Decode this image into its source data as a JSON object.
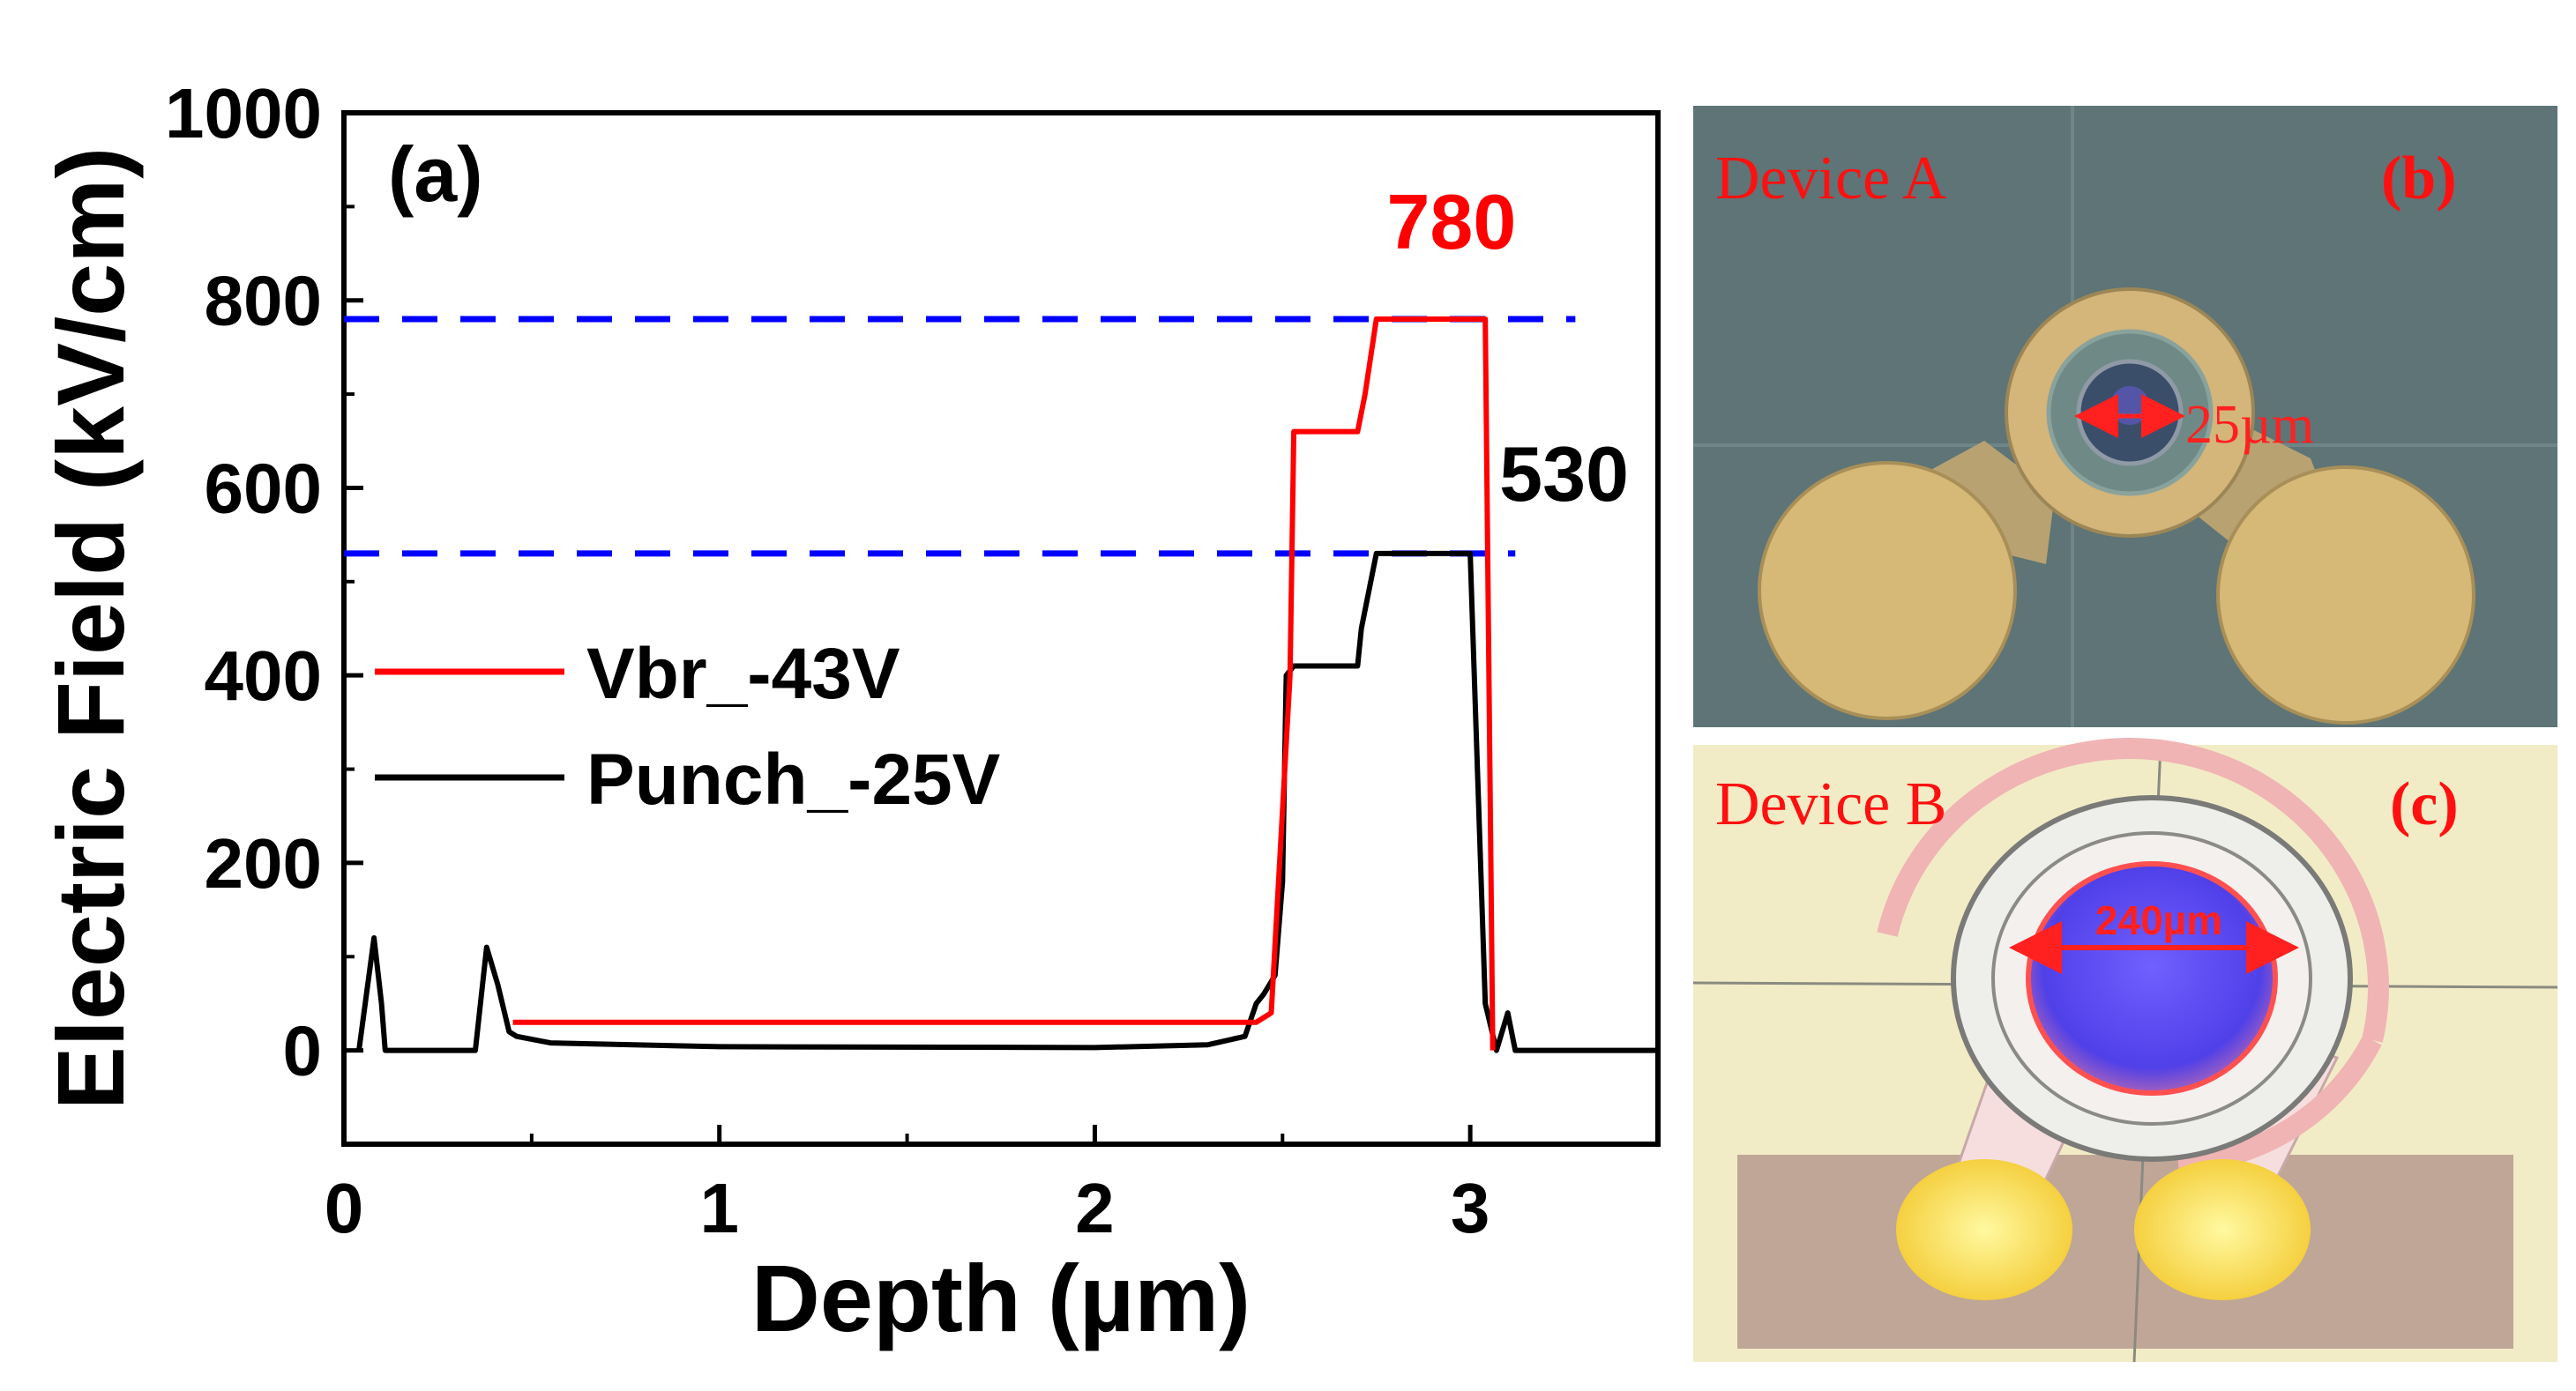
{
  "colors": {
    "vbr": "#ff0000",
    "punch": "#000000",
    "ref_lines": "#0000ff",
    "annotation_red": "#ff0000",
    "annotation_black": "#000000"
  },
  "chart_data": {
    "type": "line",
    "panel_label": "(a)",
    "xlabel": "Depth (µm)",
    "ylabel": "Electric Field (kV/cm)",
    "xlim": [
      0,
      3.5
    ],
    "ylim": [
      -100,
      1000
    ],
    "xticks": [
      0,
      1,
      2,
      3
    ],
    "xtick_labels": [
      "0",
      "1",
      "2",
      "3"
    ],
    "yticks": [
      0,
      200,
      400,
      600,
      800,
      1000
    ],
    "ytick_labels": [
      "0",
      "200",
      "400",
      "600",
      "800",
      "1000"
    ],
    "grid": false,
    "legend_position": "middle-left",
    "series": [
      {
        "name": "Vbr_-43V",
        "color": "#ff0000",
        "x": [
          0.45,
          2.43,
          2.47,
          2.52,
          2.53,
          2.7,
          2.72,
          2.75,
          3.04,
          3.06
        ],
        "y": [
          30,
          30,
          40,
          400,
          660,
          660,
          700,
          780,
          780,
          0
        ]
      },
      {
        "name": "Punch_-25V",
        "color": "#000000",
        "x": [
          0.04,
          0.08,
          0.1,
          0.11,
          0.35,
          0.38,
          0.41,
          0.44,
          0.46,
          0.55,
          1.0,
          2.0,
          2.3,
          2.4,
          2.43,
          2.45,
          2.48,
          2.5,
          2.51,
          2.53,
          2.7,
          2.71,
          2.75,
          2.97,
          3.0,
          3.04,
          3.07,
          3.1,
          3.12,
          3.15,
          3.5
        ],
        "y": [
          0,
          120,
          50,
          0,
          0,
          110,
          70,
          20,
          15,
          8,
          4,
          3,
          6,
          15,
          50,
          60,
          80,
          180,
          400,
          410,
          410,
          450,
          530,
          530,
          530,
          50,
          0,
          40,
          0,
          0,
          0
        ]
      }
    ],
    "reference_lines": [
      {
        "y": 780,
        "label": "780",
        "label_color": "#ff0000"
      },
      {
        "y": 530,
        "label": "530",
        "label_color": "#000000"
      }
    ]
  },
  "photos": {
    "b": {
      "panel_label": "(b)",
      "device_label": "Device A",
      "dimension_label": "25µm"
    },
    "c": {
      "panel_label": "(c)",
      "device_label": "Device B",
      "dimension_label": "240µm"
    }
  }
}
